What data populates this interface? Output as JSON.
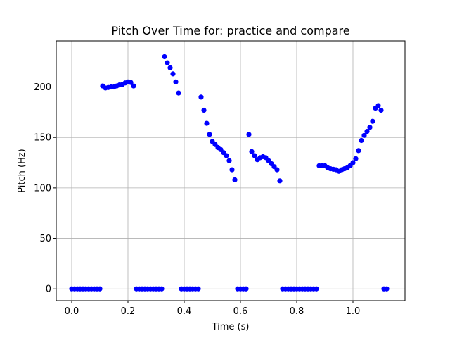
{
  "chart_data": {
    "type": "scatter",
    "title": "Pitch Over Time for: practice and compare",
    "xlabel": "Time (s)",
    "ylabel": "Pitch (Hz)",
    "xlim": [
      -0.055,
      1.185
    ],
    "ylim": [
      -11.7,
      245.7
    ],
    "xticks": [
      0.0,
      0.2,
      0.4,
      0.6,
      0.8,
      1.0
    ],
    "xtick_labels": [
      "0.0",
      "0.2",
      "0.4",
      "0.6",
      "0.8",
      "1.0"
    ],
    "yticks": [
      0,
      50,
      100,
      150,
      200
    ],
    "ytick_labels": [
      "0",
      "50",
      "100",
      "150",
      "200"
    ],
    "grid": true,
    "marker_color": "#0000ff",
    "series": [
      {
        "x": [
          0.0,
          0.01,
          0.02,
          0.03,
          0.04,
          0.05,
          0.06,
          0.07,
          0.08,
          0.09,
          0.1,
          0.11,
          0.12,
          0.13,
          0.14,
          0.15,
          0.16,
          0.17,
          0.18,
          0.19,
          0.2,
          0.21,
          0.22,
          0.23,
          0.24,
          0.25,
          0.26,
          0.27,
          0.28,
          0.29,
          0.3,
          0.31,
          0.32,
          0.33,
          0.34,
          0.35,
          0.36,
          0.37,
          0.38,
          0.39,
          0.4,
          0.41,
          0.42,
          0.43,
          0.44,
          0.45,
          0.46,
          0.47,
          0.48,
          0.49,
          0.5,
          0.51,
          0.52,
          0.53,
          0.54,
          0.55,
          0.56,
          0.57,
          0.58,
          0.59,
          0.6,
          0.61,
          0.62,
          0.63,
          0.64,
          0.65,
          0.66,
          0.67,
          0.68,
          0.69,
          0.7,
          0.71,
          0.72,
          0.73,
          0.74,
          0.75,
          0.76,
          0.77,
          0.78,
          0.79,
          0.8,
          0.81,
          0.82,
          0.83,
          0.84,
          0.85,
          0.86,
          0.87,
          0.88,
          0.89,
          0.9,
          0.91,
          0.92,
          0.93,
          0.94,
          0.95,
          0.96,
          0.97,
          0.98,
          0.99,
          1.0,
          1.01,
          1.02,
          1.03,
          1.04,
          1.05,
          1.06,
          1.07,
          1.08,
          1.09,
          1.1,
          1.11,
          1.12
        ],
        "y": [
          0,
          0,
          0,
          0,
          0,
          0,
          0,
          0,
          0,
          0,
          0,
          201,
          199,
          199.5,
          200,
          200,
          201,
          202,
          202.5,
          204,
          205,
          204.5,
          201,
          0,
          0,
          0,
          0,
          0,
          0,
          0,
          0,
          0,
          0,
          230,
          224,
          219,
          213,
          205,
          194,
          0,
          0,
          0,
          0,
          0,
          0,
          0,
          190,
          177,
          164,
          153,
          146,
          143,
          140,
          138,
          135,
          132,
          127,
          118,
          108,
          0,
          0,
          0,
          0,
          153,
          136,
          132,
          128,
          130,
          131,
          130,
          127,
          124,
          121,
          118,
          107,
          0,
          0,
          0,
          0,
          0,
          0,
          0,
          0,
          0,
          0,
          0,
          0,
          0,
          122,
          122,
          122,
          120,
          119,
          118.5,
          118,
          116.5,
          118,
          119,
          120,
          122,
          125,
          129,
          137,
          147,
          152,
          156,
          160,
          166,
          179,
          181.5,
          177,
          0,
          0
        ]
      }
    ]
  }
}
